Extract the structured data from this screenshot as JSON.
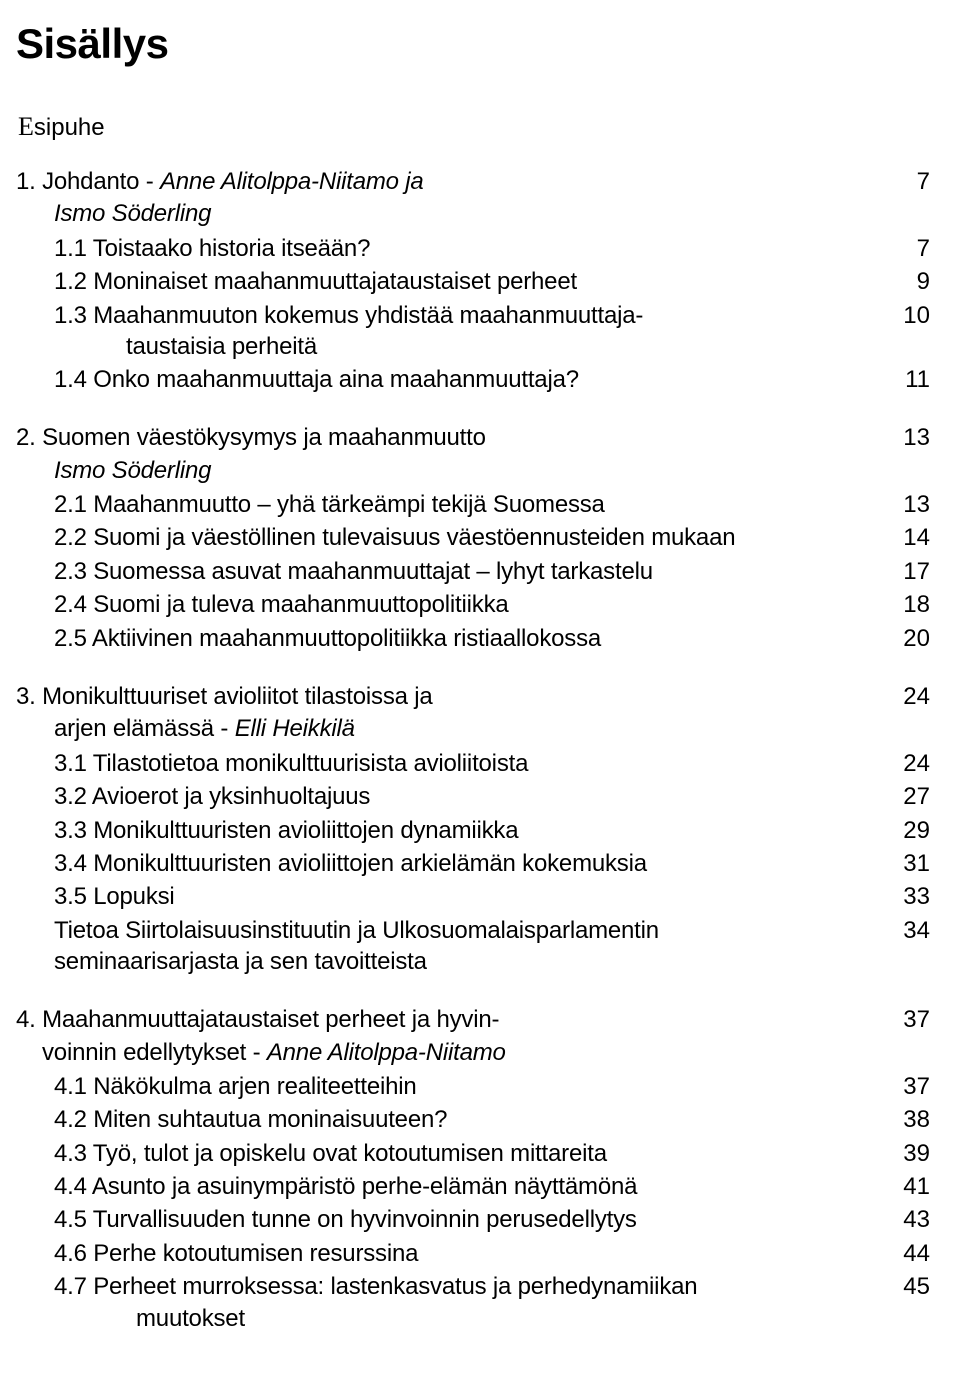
{
  "title": "Sisällys",
  "preface_dropcap": "E",
  "preface_rest": "sipuhe",
  "chapters": [
    {
      "heading_line1": "1. Johdanto - ",
      "heading_italic": "Anne Alitolppa-Niitamo ja",
      "heading_line2_italic": "Ismo Söderling",
      "page": "7",
      "subs": [
        {
          "label": "1.1 Toistaako historia itseään?",
          "page": "7"
        },
        {
          "label": "1.2 Moninaiset maahanmuuttajataustaiset perheet",
          "page": "9"
        },
        {
          "label_line1": "1.3 Maahanmuuton kokemus yhdistää maahanmuuttaja-",
          "label_line2": "taustaisia perheitä",
          "page": "10"
        },
        {
          "label": "1.4 Onko maahanmuuttaja aina maahanmuuttaja?",
          "page": "11"
        }
      ]
    },
    {
      "heading_line1": "2. Suomen väestökysymys ja    maahanmuutto",
      "heading_line2_italic": "Ismo Söderling",
      "page": "13",
      "subs": [
        {
          "label": "2.1 Maahanmuutto – yhä tärkeämpi tekijä Suomessa",
          "page": "13"
        },
        {
          "label": "2.2 Suomi ja väestöllinen tulevaisuus väestöennusteiden mukaan",
          "page": "14"
        },
        {
          "label": "2.3 Suomessa asuvat maahanmuuttajat – lyhyt tarkastelu",
          "page": "17"
        },
        {
          "label": "2.4 Suomi ja tuleva maahanmuuttopolitiikka",
          "page": "18"
        },
        {
          "label": "2.5 Aktiivinen maahanmuuttopolitiikka ristiaallokossa",
          "page": "20"
        }
      ]
    },
    {
      "heading_line1": "3. Monikulttuuriset avioliitot tilastoissa ja",
      "heading_line2_pre": "arjen elämässä - ",
      "heading_line2_italic": "Elli Heikkilä",
      "page": "24",
      "subs": [
        {
          "label": "3.1 Tilastotietoa monikulttuurisista avioliitoista",
          "page": "24"
        },
        {
          "label": "3.2 Avioerot ja yksinhuoltajuus",
          "page": "27"
        },
        {
          "label": "3.3 Monikulttuuristen avioliittojen dynamiikka",
          "page": "29"
        },
        {
          "label": "3.4 Monikulttuuristen avioliittojen arkielämän kokemuksia",
          "page": "31"
        },
        {
          "label": "3.5 Lopuksi",
          "page": "33"
        },
        {
          "label_line1": "Tietoa Siirtolaisuusinstituutin ja Ulkosuomalaisparlamentin",
          "label_line2": "seminaarisarjasta ja sen tavoitteista",
          "page": "34"
        }
      ]
    },
    {
      "heading_line1": "4. Maahanmuuttajataustaiset perheet ja hyvin-",
      "heading_line2_pre": "voinnin edellytykset - ",
      "heading_line2_italic": "Anne Alitolppa-Niitamo",
      "page": "37",
      "subs": [
        {
          "label": "4.1 Näkökulma arjen realiteetteihin",
          "page": "37"
        },
        {
          "label": "4.2 Miten suhtautua moninaisuuteen?",
          "page": "38"
        },
        {
          "label": "4.3 Työ, tulot ja opiskelu ovat kotoutumisen mittareita",
          "page": "39"
        },
        {
          "label": "4.4 Asunto ja asuinympäristö perhe-elämän näyttämönä",
          "page": "41"
        },
        {
          "label": "4.5 Turvallisuuden tunne on hyvinvoinnin perusedellytys",
          "page": "43"
        },
        {
          "label": "4.6 Perhe kotoutumisen resurssina",
          "page": "44"
        },
        {
          "label_line1": "4.7 Perheet murroksessa: lastenkasvatus ja perhedynamiikan",
          "label_line2": "muutokset",
          "page": "45"
        }
      ]
    }
  ]
}
